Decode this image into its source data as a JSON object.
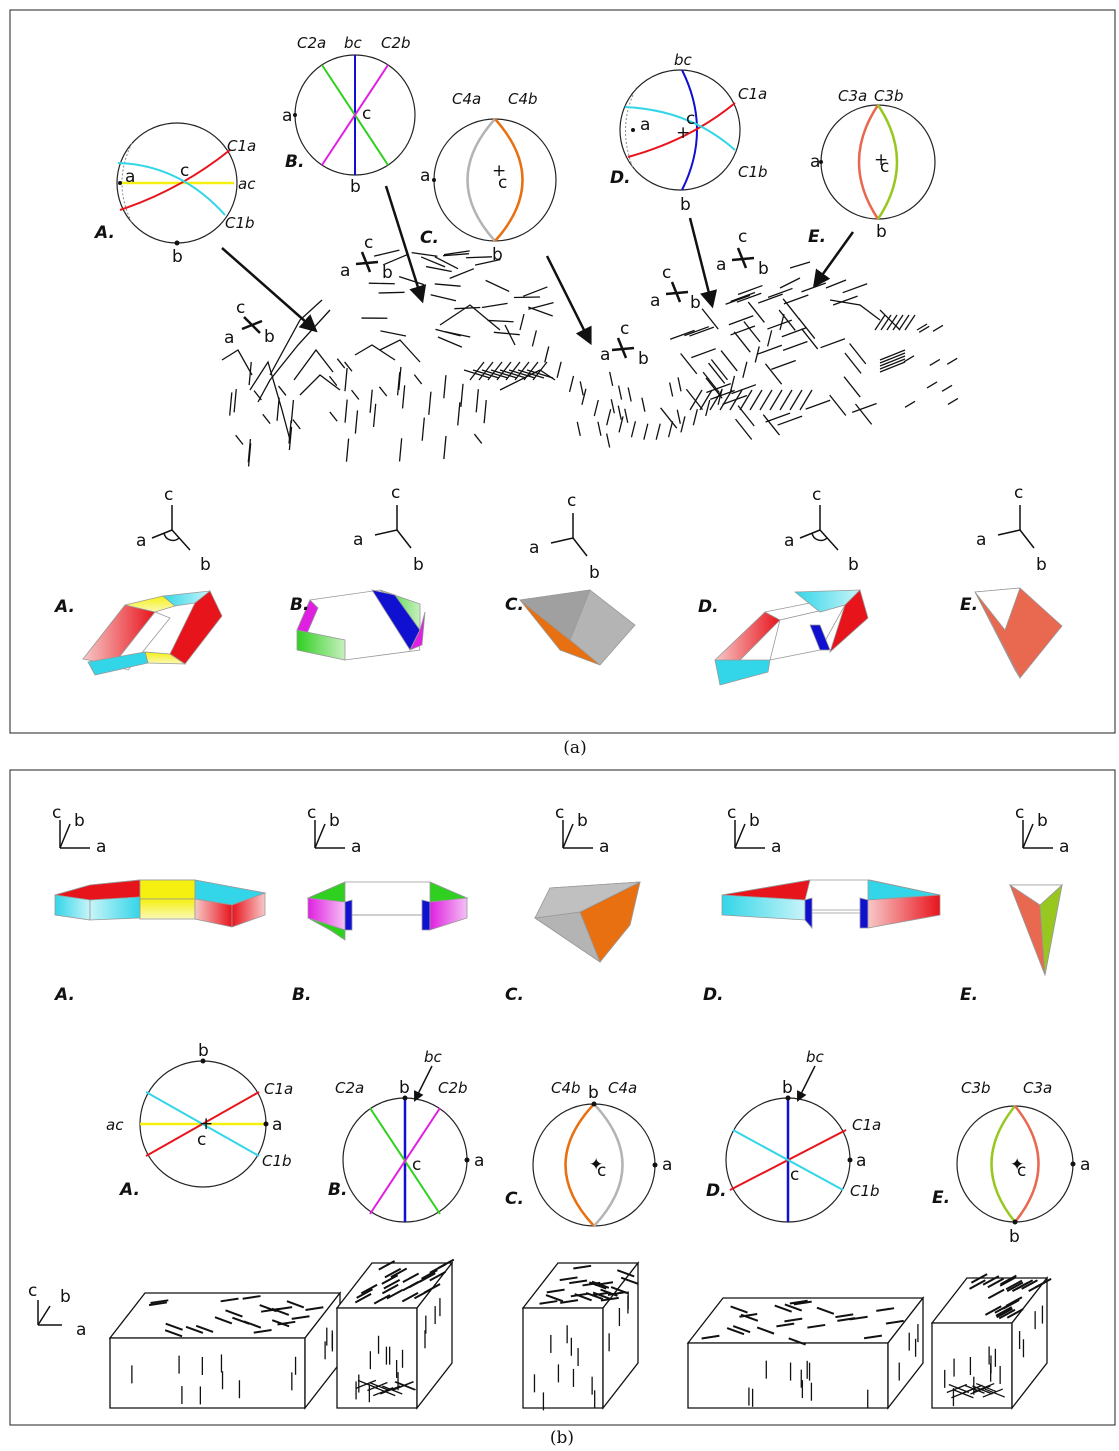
{
  "captions": {
    "a": "(a)",
    "b": "(b)"
  },
  "panel_a": {
    "labels": [
      "A.",
      "B.",
      "C.",
      "D.",
      "E."
    ],
    "stereonet_A": {
      "c1a": "C1a",
      "c1b": "C1b",
      "ac": "ac",
      "a": "a",
      "b": "b",
      "c": "c"
    },
    "stereonet_B": {
      "c2a": "C2a",
      "c2b": "C2b",
      "bc": "bc",
      "a": "a",
      "b": "b",
      "c": "c"
    },
    "stereonet_C": {
      "c4a": "C4a",
      "c4b": "C4b",
      "a": "a",
      "b": "b",
      "c": "c"
    },
    "stereonet_D": {
      "c1a": "C1a",
      "c1b": "C1b",
      "bc": "bc",
      "a": "a",
      "b": "b",
      "c": "c"
    },
    "stereonet_E": {
      "c3a": "C3a",
      "c3b": "C3b",
      "a": "a",
      "b": "b",
      "c": "c"
    },
    "axes": {
      "a": "a",
      "b": "b",
      "c": "c"
    }
  },
  "panel_b": {
    "labels": [
      "A.",
      "B.",
      "C.",
      "D.",
      "E."
    ],
    "axes": {
      "a": "a",
      "b": "b",
      "c": "c"
    },
    "stereonet_A": {
      "c1a": "C1a",
      "c1b": "C1b",
      "ac": "ac",
      "a": "a",
      "b": "b",
      "c": "c"
    },
    "stereonet_B": {
      "c2a": "C2a",
      "c2b": "C2b",
      "bc": "bc",
      "a": "a",
      "b": "b",
      "c": "c"
    },
    "stereonet_C": {
      "c4a": "C4a",
      "c4b": "C4b",
      "a": "a",
      "b": "b",
      "c": "c"
    },
    "stereonet_D": {
      "c1a": "C1a",
      "c1b": "C1b",
      "bc": "bc",
      "a": "a",
      "b": "b",
      "c": "c"
    },
    "stereonet_E": {
      "c3a": "C3a",
      "c3b": "C3b",
      "a": "a",
      "b": "b",
      "c": "c"
    }
  },
  "colors": {
    "red": "#e8141c",
    "cyan": "#32d6e8",
    "yellow": "#f5f010",
    "green": "#30d020",
    "magenta": "#e020e0",
    "blue": "#1010d0",
    "orange": "#e87010",
    "grey": "#b4b4b4",
    "salmon": "#e86850",
    "lime": "#98c820"
  }
}
